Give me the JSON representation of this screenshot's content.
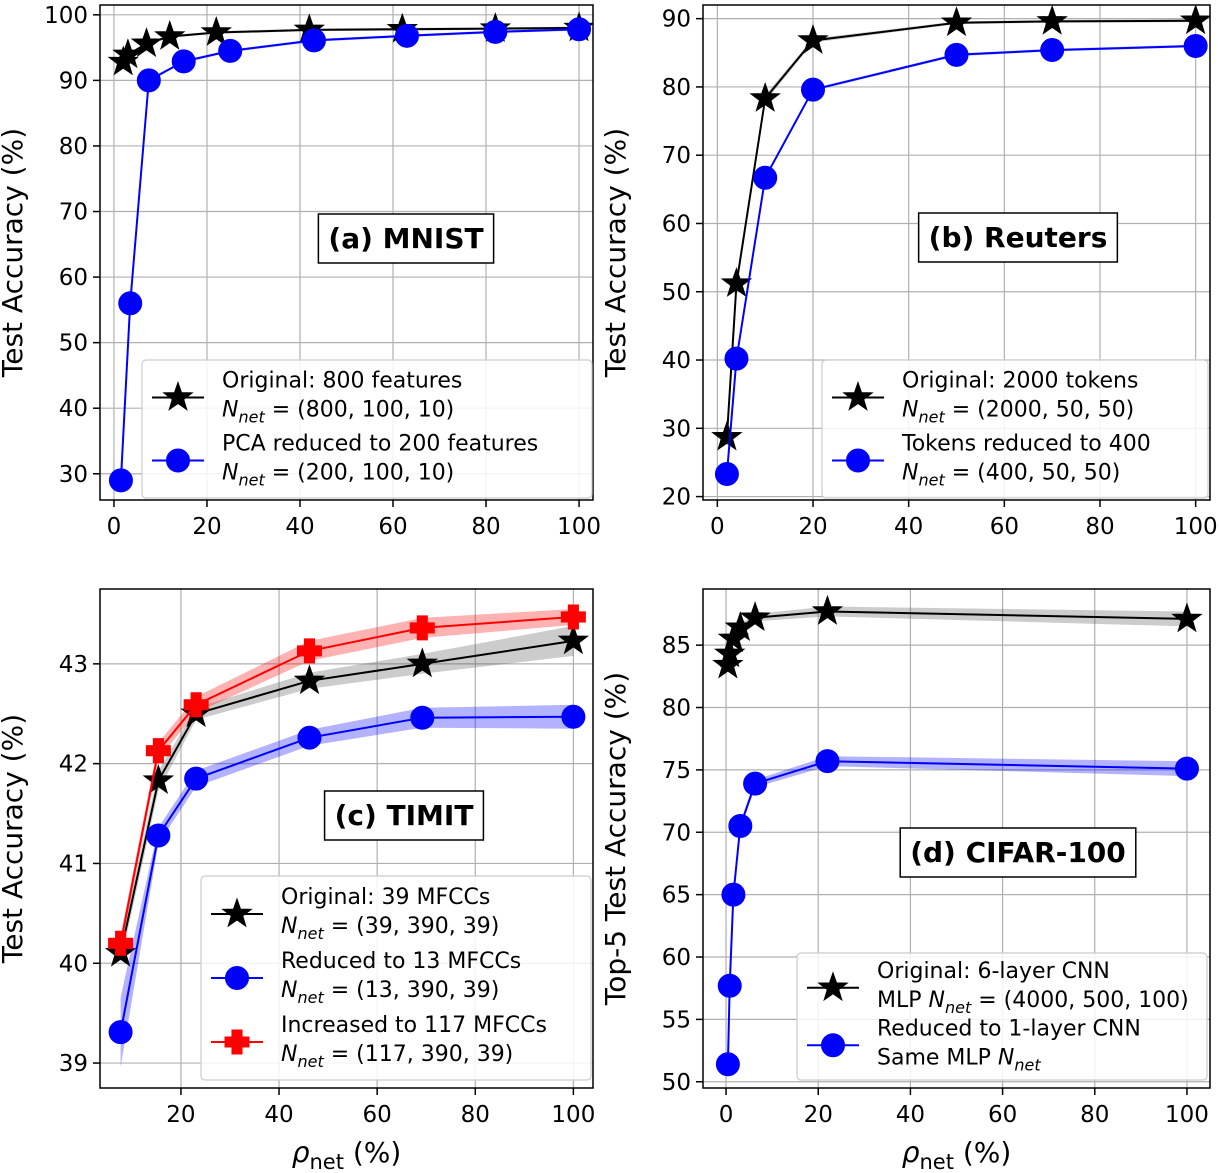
{
  "chart_data": [
    {
      "id": "a",
      "type": "line",
      "title": "(a) MNIST",
      "ylabel": "Test Accuracy (%)",
      "xlabel": "",
      "xlim": [
        -3,
        103
      ],
      "ylim": [
        26,
        101.5
      ],
      "xticks": [
        0,
        20,
        40,
        60,
        80,
        100
      ],
      "yticks": [
        30,
        40,
        50,
        60,
        70,
        80,
        90,
        100
      ],
      "grid": true,
      "legend_position": "lower-right",
      "series": [
        {
          "name": "Original: 800 features",
          "name2_pre": "N",
          "name2_sub": "net",
          "name2_post": " = (800, 100, 10)",
          "color": "#000000",
          "marker": "star",
          "x": [
            2,
            3,
            7,
            12,
            22,
            42,
            62,
            82,
            100
          ],
          "y": [
            92.8,
            93.9,
            95.6,
            96.7,
            97.3,
            97.7,
            97.8,
            97.9,
            98.0
          ],
          "band": [
            0.2,
            0.2,
            0.2,
            0.2,
            0.2,
            0.2,
            0.2,
            0.2,
            0.2
          ]
        },
        {
          "name": "PCA reduced to 200 features",
          "name2_pre": "N",
          "name2_sub": "net",
          "name2_post": " = (200, 100, 10)",
          "color": "#0000ff",
          "marker": "circle",
          "x": [
            1.5,
            3.5,
            7.5,
            15,
            25,
            43,
            63,
            82,
            100
          ],
          "y": [
            29.0,
            56.0,
            90.0,
            92.9,
            94.5,
            96.1,
            96.8,
            97.4,
            97.8
          ],
          "band": [
            0.2,
            0.2,
            0.2,
            0.2,
            0.2,
            0.2,
            0.2,
            0.2,
            0.2
          ]
        }
      ]
    },
    {
      "id": "b",
      "type": "line",
      "title": "(b) Reuters",
      "ylabel": "Test Accuracy (%)",
      "xlabel": "",
      "xlim": [
        -3,
        103
      ],
      "ylim": [
        19.5,
        92
      ],
      "xticks": [
        0,
        20,
        40,
        60,
        80,
        100
      ],
      "yticks": [
        20,
        30,
        40,
        50,
        60,
        70,
        80,
        90
      ],
      "grid": true,
      "legend_position": "lower-right",
      "series": [
        {
          "name": "Original: 2000 tokens",
          "name2_pre": "N",
          "name2_sub": "net",
          "name2_post": " = (2000, 50, 50)",
          "color": "#000000",
          "marker": "star",
          "x": [
            2,
            4,
            10,
            20,
            50,
            70,
            100
          ],
          "y": [
            28.7,
            51.2,
            78.3,
            86.8,
            89.4,
            89.6,
            89.7
          ],
          "band": [
            0.3,
            0.3,
            0.5,
            0.3,
            0.2,
            0.2,
            0.2
          ]
        },
        {
          "name": "Tokens reduced to 400",
          "name2_pre": "N",
          "name2_sub": "net",
          "name2_post": " = (400, 50, 50)",
          "color": "#0000ff",
          "marker": "circle",
          "x": [
            2,
            4,
            10,
            20,
            50,
            70,
            100
          ],
          "y": [
            23.3,
            40.2,
            66.7,
            79.6,
            84.7,
            85.4,
            86.0
          ],
          "band": [
            0.2,
            0.2,
            0.2,
            0.2,
            0.2,
            0.2,
            0.2
          ]
        }
      ]
    },
    {
      "id": "c",
      "type": "line",
      "title": "(c) TIMIT",
      "ylabel": "Test Accuracy (%)",
      "xlabel": "ρnet (%)",
      "xlabel_sym": "ρ",
      "xlabel_sub": "net",
      "xlabel_rest": " (%)",
      "xlim": [
        3.5,
        104
      ],
      "ylim": [
        38.75,
        43.75
      ],
      "xticks": [
        20,
        40,
        60,
        80,
        100
      ],
      "yticks": [
        39,
        40,
        41,
        42,
        43
      ],
      "grid": true,
      "legend_position": "lower-right",
      "series": [
        {
          "name": "Original: 39 MFCCs",
          "name2_pre": "N",
          "name2_sub": "net",
          "name2_post": " = (39, 390, 39)",
          "color": "#000000",
          "marker": "star",
          "x": [
            7.7,
            15.4,
            23.1,
            46.2,
            69.2,
            100
          ],
          "y": [
            40.1,
            41.83,
            42.5,
            42.83,
            43.0,
            43.23
          ],
          "band": [
            0.1,
            0.1,
            0.06,
            0.08,
            0.1,
            0.15
          ]
        },
        {
          "name": "Reduced to 13 MFCCs",
          "name2_pre": "N",
          "name2_sub": "net",
          "name2_post": " = (13, 390, 39)",
          "color": "#0000ff",
          "marker": "circle",
          "x": [
            7.7,
            15.4,
            23.1,
            46.2,
            69.2,
            100
          ],
          "y": [
            39.31,
            41.28,
            41.85,
            42.26,
            42.46,
            42.47
          ],
          "band": [
            0.35,
            0.08,
            0.08,
            0.08,
            0.1,
            0.12
          ]
        },
        {
          "name": "Increased to 117 MFCCs",
          "name2_pre": "N",
          "name2_sub": "net",
          "name2_post": " = (117, 390, 39)",
          "color": "#ff0000",
          "marker": "plus",
          "x": [
            7.7,
            15.4,
            23.1,
            46.2,
            69.2,
            100
          ],
          "y": [
            40.2,
            42.13,
            42.59,
            43.13,
            43.36,
            43.47
          ],
          "band": [
            0.08,
            0.08,
            0.08,
            0.1,
            0.1,
            0.08
          ]
        }
      ]
    },
    {
      "id": "d",
      "type": "line",
      "title": "(d) CIFAR-100",
      "ylabel": "Top-5 Test Accuracy (%)",
      "xlabel": "ρnet (%)",
      "xlabel_sym": "ρ",
      "xlabel_sub": "net",
      "xlabel_rest": " (%)",
      "xlim": [
        -5,
        105
      ],
      "ylim": [
        49.5,
        89.5
      ],
      "xticks": [
        0,
        20,
        40,
        60,
        80,
        100
      ],
      "yticks": [
        50,
        55,
        60,
        65,
        70,
        75,
        80,
        85
      ],
      "grid": true,
      "legend_position": "lower-right",
      "series": [
        {
          "name": "Original: 6-layer CNN",
          "name2_pre": "MLP N",
          "name2_sub": "net",
          "name2_post": " = (4000, 500, 100)",
          "color": "#000000",
          "marker": "star",
          "x": [
            0.4,
            0.8,
            1.6,
            3.1,
            6.3,
            22,
            100
          ],
          "y": [
            83.4,
            84.3,
            85.5,
            86.4,
            87.2,
            87.7,
            87.1
          ],
          "band": [
            0.3,
            0.3,
            0.3,
            0.3,
            0.3,
            0.4,
            0.6
          ]
        },
        {
          "name": "Reduced to 1-layer CNN",
          "name2_pre": "Same MLP N",
          "name2_sub": "net",
          "name2_post": "",
          "color": "#0000ff",
          "marker": "circle",
          "x": [
            0.4,
            0.8,
            1.6,
            3.1,
            6.3,
            22,
            100
          ],
          "y": [
            51.4,
            57.7,
            65.0,
            70.5,
            73.9,
            75.7,
            75.1
          ],
          "band": [
            0.2,
            0.2,
            0.2,
            0.3,
            0.3,
            0.4,
            0.6
          ]
        }
      ]
    }
  ]
}
